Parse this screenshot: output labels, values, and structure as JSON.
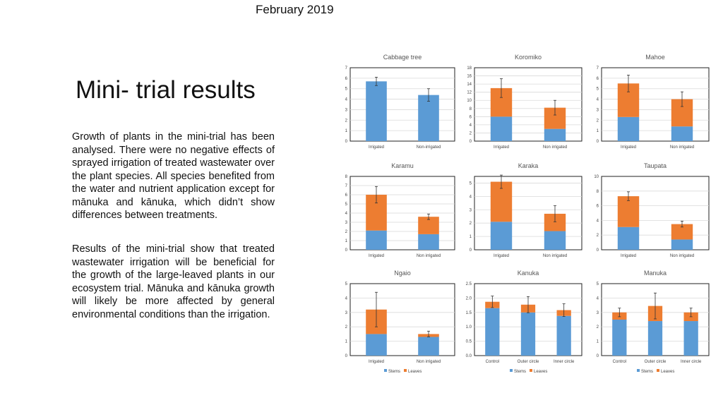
{
  "slide": {
    "date": "February 2019",
    "title": "Mini- trial results",
    "paragraph1": "Growth of plants in the mini-trial has been analysed. There were no negative effects of sprayed irrigation of treated wastewater over the plant species. All species benefited from the water and nutrient application except for mānuka and kānuka, which didn’t show differences between treatments.",
    "paragraph2": "Results of the mini-trial show that treated wastewater irrigation will be beneficial for the growth of the large-leaved plants in our ecosystem trial. Mānuka and kānuka growth will likely be more affected by general environmental conditions than the irrigation."
  },
  "colors": {
    "stems": "#5b9bd5",
    "leaves": "#ed7d31",
    "axis": "#333333",
    "grid": "#d9d9d9"
  },
  "chart_data": [
    {
      "type": "bar",
      "title": "Cabbage tree",
      "categories": [
        "Irrigated",
        "Non-irrigated"
      ],
      "series": [
        {
          "values": [
            5.7,
            4.4
          ]
        }
      ],
      "errors": [
        0.4,
        0.6
      ],
      "ylim": [
        0,
        7
      ],
      "yticks": [
        0,
        1,
        2,
        3,
        4,
        5,
        6,
        7
      ],
      "legend": []
    },
    {
      "type": "bar",
      "title": "Koromiko",
      "categories": [
        "Irrigated",
        "Non irrigated"
      ],
      "series": [
        {
          "values": [
            6,
            3
          ]
        },
        {
          "values": [
            7,
            5.2
          ]
        }
      ],
      "errors": [
        2.3,
        1.8
      ],
      "ylim": [
        0,
        18
      ],
      "yticks": [
        0,
        2,
        4,
        6,
        8,
        10,
        12,
        14,
        16,
        18
      ],
      "legend": []
    },
    {
      "type": "bar",
      "title": "Mahoe",
      "categories": [
        "Irrigated",
        "Non irrigated"
      ],
      "series": [
        {
          "values": [
            2.3,
            1.4
          ]
        },
        {
          "values": [
            3.2,
            2.6
          ]
        }
      ],
      "errors": [
        0.8,
        0.7
      ],
      "ylim": [
        0,
        7
      ],
      "yticks": [
        0,
        1,
        2,
        3,
        4,
        5,
        6,
        7
      ],
      "legend": []
    },
    {
      "type": "bar",
      "title": "Karamu",
      "categories": [
        "Irrigated",
        "Non irrigated"
      ],
      "series": [
        {
          "values": [
            2.1,
            1.7
          ]
        },
        {
          "values": [
            3.9,
            1.9
          ]
        }
      ],
      "errors": [
        0.9,
        0.3
      ],
      "ylim": [
        0,
        8
      ],
      "yticks": [
        0,
        1,
        2,
        3,
        4,
        5,
        6,
        7,
        8
      ],
      "legend": []
    },
    {
      "type": "bar",
      "title": "Karaka",
      "categories": [
        "Irrigated",
        "Non irrigated"
      ],
      "series": [
        {
          "values": [
            2.1,
            1.4
          ]
        },
        {
          "values": [
            3,
            1.3
          ]
        }
      ],
      "errors": [
        0.5,
        0.6
      ],
      "ylim": [
        0,
        5.5
      ],
      "yticks": [
        0,
        1,
        2,
        3,
        4,
        5
      ],
      "legend": []
    },
    {
      "type": "bar",
      "title": "Taupata",
      "categories": [
        "Irrigated",
        "Non irrigated"
      ],
      "series": [
        {
          "values": [
            3.1,
            1.4
          ]
        },
        {
          "values": [
            4.2,
            2.1
          ]
        }
      ],
      "errors": [
        0.6,
        0.4
      ],
      "ylim": [
        0,
        10
      ],
      "yticks": [
        0,
        2,
        4,
        6,
        8,
        10
      ],
      "legend": []
    },
    {
      "type": "bar",
      "title": "Ngaio",
      "categories": [
        "Irrigated",
        "Non irrigated"
      ],
      "series": [
        {
          "values": [
            1.5,
            1.3
          ]
        },
        {
          "values": [
            1.7,
            0.2
          ]
        }
      ],
      "errors": [
        1.2,
        0.2
      ],
      "ylim": [
        0,
        5
      ],
      "yticks": [
        0,
        1,
        2,
        3,
        4,
        5
      ],
      "legend": [
        "Stems",
        "Leaves"
      ]
    },
    {
      "type": "bar",
      "title": "Kanuka",
      "categories": [
        "Control",
        "Outer circle",
        "Inner circle"
      ],
      "series": [
        {
          "values": [
            1.65,
            1.5,
            1.38
          ]
        },
        {
          "values": [
            0.22,
            0.27,
            0.2
          ]
        }
      ],
      "errors": [
        0.2,
        0.28,
        0.22
      ],
      "ylim": [
        0,
        2.5
      ],
      "yticks": [
        0,
        0.5,
        1,
        1.5,
        2,
        2.5
      ],
      "ytickLabels": [
        "0.0",
        "0.5",
        "1.0",
        "1.5",
        "2.0",
        "2.5"
      ],
      "legend": [
        "Stems",
        "Leaves"
      ]
    },
    {
      "type": "bar",
      "title": "Manuka",
      "categories": [
        "Control",
        "Outer circle",
        "Inner circle"
      ],
      "series": [
        {
          "values": [
            2.5,
            2.4,
            2.4
          ]
        },
        {
          "values": [
            0.5,
            1.05,
            0.6
          ]
        }
      ],
      "errors": [
        0.3,
        0.9,
        0.3
      ],
      "ylim": [
        0,
        5
      ],
      "yticks": [
        0,
        1,
        2,
        3,
        4,
        5
      ],
      "legend": [
        "Stems",
        "Leaves"
      ]
    }
  ]
}
